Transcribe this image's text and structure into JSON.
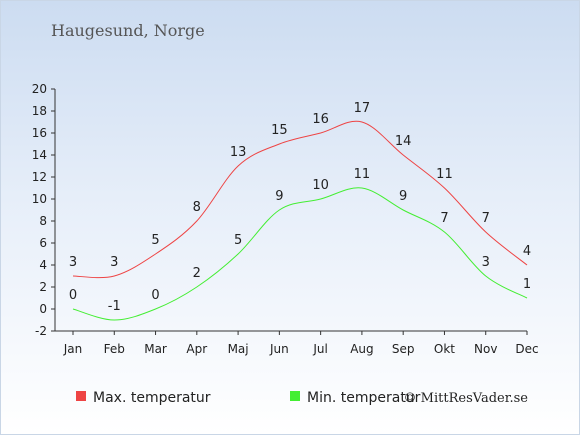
{
  "location": "Haugesund, Norge",
  "copyright": "© MittResVader.se",
  "chart_data": {
    "type": "line",
    "title": "",
    "xlabel": "",
    "ylabel": "",
    "categories": [
      "Jan",
      "Feb",
      "Mar",
      "Apr",
      "Maj",
      "Jun",
      "Jul",
      "Aug",
      "Sep",
      "Okt",
      "Nov",
      "Dec"
    ],
    "ylim": [
      -2,
      20
    ],
    "yticks": [
      -2,
      0,
      2,
      4,
      6,
      8,
      10,
      12,
      14,
      16,
      18,
      20
    ],
    "grid": false,
    "legend_position": "bottom-left",
    "series": [
      {
        "name": "Max. temperatur",
        "color": "#ee4444",
        "values": [
          3,
          3,
          5,
          8,
          13,
          15,
          16,
          17,
          14,
          11,
          7,
          4
        ]
      },
      {
        "name": "Min. temperatur",
        "color": "#44ee33",
        "values": [
          0,
          -1,
          0,
          2,
          5,
          9,
          10,
          11,
          9,
          7,
          3,
          1
        ]
      }
    ]
  }
}
